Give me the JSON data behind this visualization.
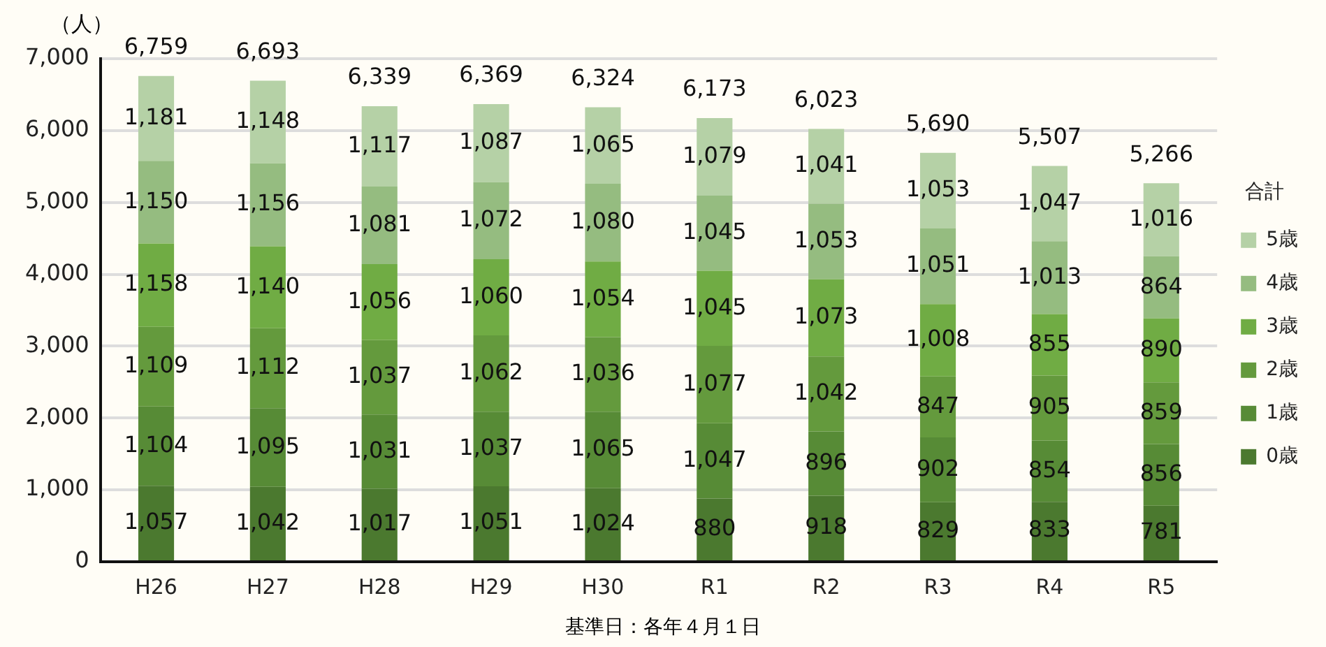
{
  "chart_data": {
    "type": "bar",
    "stacked": true,
    "ylabel": "（人）",
    "legend_title": "合計",
    "categories": [
      "H26",
      "H27",
      "H28",
      "H29",
      "H30",
      "R1",
      "R2",
      "R3",
      "R4",
      "R5"
    ],
    "series": [
      {
        "name": "0歳",
        "color": "#4b792f",
        "values": [
          1057,
          1042,
          1017,
          1051,
          1024,
          880,
          918,
          829,
          833,
          781
        ],
        "value_labels": [
          "1,057",
          "1,042",
          "1,017",
          "1,051",
          "1,024",
          "880",
          "918",
          "829",
          "833",
          "781"
        ]
      },
      {
        "name": "1歳",
        "color": "#578b36",
        "values": [
          1104,
          1095,
          1031,
          1037,
          1065,
          1047,
          896,
          902,
          854,
          856
        ],
        "value_labels": [
          "1,104",
          "1,095",
          "1,031",
          "1,037",
          "1,065",
          "1,047",
          "896",
          "902",
          "854",
          "856"
        ]
      },
      {
        "name": "2歳",
        "color": "#649a3d",
        "values": [
          1109,
          1112,
          1037,
          1062,
          1036,
          1077,
          1042,
          847,
          905,
          859
        ],
        "value_labels": [
          "1,109",
          "1,112",
          "1,037",
          "1,062",
          "1,036",
          "1,077",
          "1,042",
          "847",
          "905",
          "859"
        ]
      },
      {
        "name": "3歳",
        "color": "#70ac44",
        "values": [
          1158,
          1140,
          1056,
          1060,
          1054,
          1045,
          1073,
          1008,
          855,
          890
        ],
        "value_labels": [
          "1,158",
          "1,140",
          "1,056",
          "1,060",
          "1,054",
          "1,045",
          "1,073",
          "1,008",
          "855",
          "890"
        ]
      },
      {
        "name": "4歳",
        "color": "#95bc80",
        "values": [
          1150,
          1156,
          1081,
          1072,
          1080,
          1045,
          1053,
          1051,
          1013,
          864
        ],
        "value_labels": [
          "1,150",
          "1,156",
          "1,081",
          "1,072",
          "1,080",
          "1,045",
          "1,053",
          "1,051",
          "1,013",
          "864"
        ]
      },
      {
        "name": "5歳",
        "color": "#b5d1a6",
        "values": [
          1181,
          1148,
          1117,
          1087,
          1065,
          1079,
          1041,
          1053,
          1047,
          1016
        ],
        "value_labels": [
          "1,181",
          "1,148",
          "1,117",
          "1,087",
          "1,065",
          "1,079",
          "1,041",
          "1,053",
          "1,047",
          "1,016"
        ]
      }
    ],
    "totals": [
      "6,759",
      "6,693",
      "6,339",
      "6,369",
      "6,324",
      "6,173",
      "6,023",
      "5,690",
      "5,507",
      "5,266"
    ],
    "ylim": [
      0,
      7000
    ],
    "yticks": [
      0,
      {
        "value": 1000,
        "label": "1,000"
      },
      {
        "value": 2000,
        "label": "2,000"
      },
      {
        "value": 3000,
        "label": "3,000"
      },
      {
        "value": 4000,
        "label": "4,000"
      },
      {
        "value": 5000,
        "label": "5,000"
      },
      {
        "value": 6000,
        "label": "6,000"
      },
      {
        "value": 7000,
        "label": "7,000"
      }
    ],
    "grid": "y",
    "legend": "right",
    "annotations": [
      "基準日：各年４月１日"
    ]
  }
}
